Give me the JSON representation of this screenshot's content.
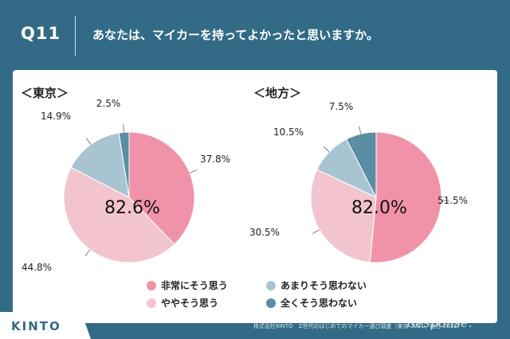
{
  "header": {
    "qnum": "Q11",
    "question": "あなたは、マイカーを持ってよかったと思いますか。"
  },
  "chart_data": [
    {
      "type": "pie",
      "title": "＜東京＞",
      "categories": [
        "非常にそう思う",
        "ややそう思う",
        "あまりそう思わない",
        "全くそう思わない"
      ],
      "values": [
        37.8,
        44.8,
        14.9,
        2.5
      ],
      "labels": [
        "37.8%",
        "44.8%",
        "14.9%",
        "2.5%"
      ],
      "center_label": "82.6%"
    },
    {
      "type": "pie",
      "title": "＜地方＞",
      "categories": [
        "非常にそう思う",
        "ややそう思う",
        "あまりそう思わない",
        "全くそう思わない"
      ],
      "values": [
        51.5,
        30.5,
        10.5,
        7.5
      ],
      "labels": [
        "51.5%",
        "30.5%",
        "10.5%",
        "7.5%"
      ],
      "center_label": "82.0%"
    }
  ],
  "legend": [
    {
      "label": "非常にそう思う",
      "color": "#f093a9"
    },
    {
      "label": "あまりそう思わない",
      "color": "#a8c4d1"
    },
    {
      "label": "ややそう思う",
      "color": "#f2c5ce"
    },
    {
      "label": "全くそう思わない",
      "color": "#5a8ea3"
    }
  ],
  "colors": [
    "#f093a9",
    "#f2c5ce",
    "#a8c4d1",
    "#5a8ea3"
  ],
  "source": "株式会社KINTO　Z世代のはじめてのマイカー選び調査（東京 2021、地方 2022）",
  "logo": "KINTO",
  "watermark": "Response."
}
